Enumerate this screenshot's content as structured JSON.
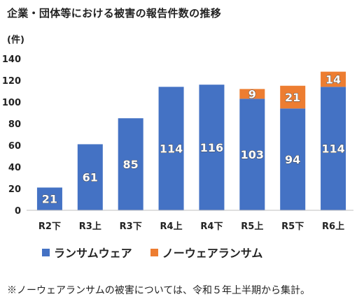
{
  "title": "企業・団体等における被害の報告件数の推移",
  "unit_label": "(件)",
  "footnote": "※ノーウェアランサムの被害については、令和５年上半期から集計。",
  "colors": {
    "ransomware": "#4472C4",
    "noware": "#ED7D31"
  },
  "legend": [
    {
      "name": "ランサムウェア",
      "color_key": "ransomware"
    },
    {
      "name": "ノーウェアランサム",
      "color_key": "noware"
    }
  ],
  "chart_data": {
    "type": "bar",
    "stacked": true,
    "categories": [
      "R2下",
      "R3上",
      "R3下",
      "R4上",
      "R4下",
      "R5上",
      "R5下",
      "R6上"
    ],
    "series": [
      {
        "name": "ランサムウェア",
        "values": [
          21,
          61,
          85,
          114,
          116,
          103,
          94,
          114
        ]
      },
      {
        "name": "ノーウェアランサム",
        "values": [
          null,
          null,
          null,
          null,
          null,
          9,
          21,
          14
        ]
      }
    ],
    "ylim": [
      0,
      140
    ],
    "yticks": [
      0,
      20,
      40,
      60,
      80,
      100,
      120,
      140
    ],
    "ylabel": "(件)",
    "grid": false,
    "legend_position": "bottom"
  }
}
